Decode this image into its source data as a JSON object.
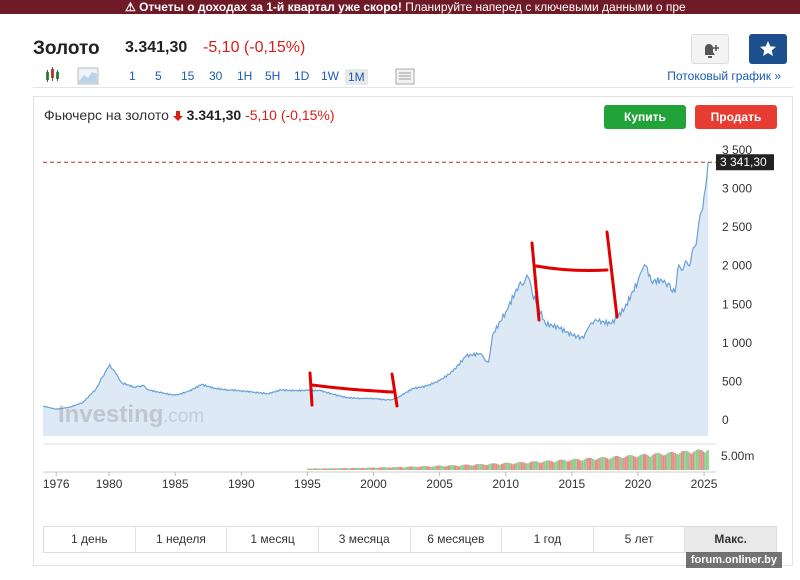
{
  "banner": {
    "bold": "⚠ Отчеты о доходах за 1-й квартал уже скоро!",
    "rest": " Планируйте наперед с ключевыми данными о пре"
  },
  "header": {
    "name": "Золото",
    "price": "3.341,30",
    "change": "-5,10 (-0,15%)"
  },
  "toolbar": {
    "intervals": [
      "1",
      "5",
      "15",
      "30",
      "1H",
      "5H",
      "1D",
      "1W",
      "1M"
    ],
    "selected": "1M",
    "stream_label": "Потоковый график »"
  },
  "panel": {
    "title": "Фьючерс на золото",
    "price": "3.341,30",
    "change": "-5,10 (-0,15%)",
    "buy": "Купить",
    "sell": "Продать",
    "watermark_brand": "Investing",
    "watermark_tld": ".com"
  },
  "periods": [
    "1 день",
    "1 неделя",
    "1 месяц",
    "3 месяца",
    "6 месяцев",
    "1 год",
    "5 лет",
    "Макс."
  ],
  "chart_data": {
    "type": "area",
    "x_start": 1975,
    "x_end": 2025.3,
    "x_ticks": [
      1976,
      1980,
      1985,
      1990,
      1995,
      2000,
      2005,
      2010,
      2015,
      2020,
      2025
    ],
    "y_ticks": [
      0,
      500,
      1000,
      1500,
      2000,
      2500,
      3000,
      3500
    ],
    "y_tick_labels": [
      "0",
      "500",
      "1 000",
      "1 500",
      "2 000",
      "2 500",
      "3 000",
      "3 500"
    ],
    "ylim": [
      0,
      3500
    ],
    "last_value": 3341.3,
    "last_label": "3 341,30",
    "volume_label": "5.00m",
    "series": [
      {
        "x": [
          1975,
          1976,
          1977,
          1978,
          1979,
          1979.8,
          1980.05,
          1980.5,
          1981,
          1982,
          1982.5,
          1983,
          1984,
          1985,
          1986,
          1987,
          1988,
          1989,
          1990,
          1991,
          1992,
          1993,
          1994,
          1995,
          1996,
          1997,
          1998,
          1999,
          2000,
          2001,
          2001.5,
          2002,
          2003,
          2004,
          2005,
          2006,
          2007,
          2008,
          2008.7,
          2009,
          2010,
          2011,
          2011.7,
          2012,
          2013,
          2014,
          2015,
          2015.9,
          2016.5,
          2017,
          2018,
          2019,
          2020,
          2020.6,
          2021,
          2022,
          2022.8,
          2023,
          2023.5,
          2024,
          2024.5,
          2025,
          2025.3
        ],
        "values": [
          180,
          140,
          165,
          225,
          400,
          650,
          720,
          600,
          480,
          420,
          450,
          390,
          350,
          320,
          370,
          460,
          410,
          390,
          380,
          360,
          340,
          390,
          380,
          385,
          380,
          330,
          290,
          280,
          280,
          260,
          270,
          310,
          410,
          440,
          510,
          630,
          830,
          860,
          750,
          1100,
          1400,
          1750,
          1850,
          1650,
          1250,
          1200,
          1100,
          1060,
          1260,
          1280,
          1250,
          1450,
          1800,
          2000,
          1800,
          1810,
          1650,
          1950,
          2000,
          2060,
          2400,
          2900,
          3341
        ]
      }
    ],
    "volume": {
      "x_start": 1995,
      "x_end": 2025.3
    }
  },
  "colors": {
    "line": "#6aa0d8",
    "fill": "#dde9f5",
    "accent_red": "#d91e18",
    "ref_line": "#a33",
    "annotation": "#e00000",
    "buy": "#21a33a",
    "sell": "#e63c32",
    "star_btn": "#1d4e8e"
  }
}
